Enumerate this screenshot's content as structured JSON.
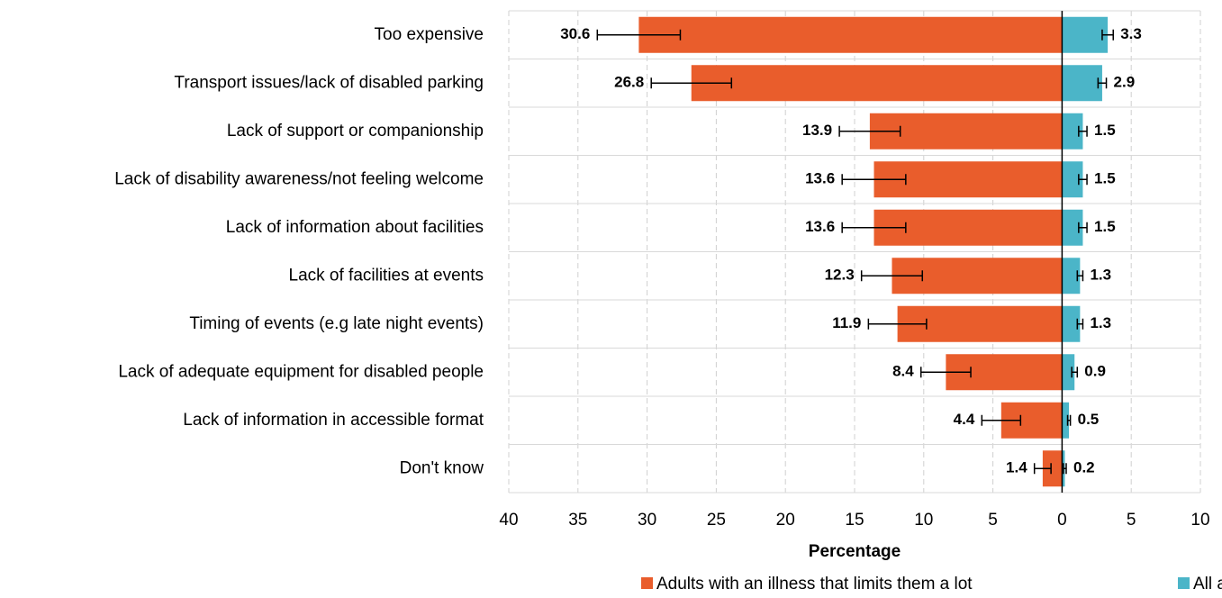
{
  "chart_data": {
    "type": "butterfly_bar",
    "categories": [
      "Too expensive",
      "Transport issues/lack of disabled parking",
      "Lack of support or companionship",
      "Lack of disability awareness/not feeling welcome",
      "Lack of information about facilities",
      "Lack of facilities at events",
      "Timing of events (e.g late night events)",
      "Lack of adequate equipment for disabled people",
      "Lack of information in accessible format",
      "Don't know"
    ],
    "series": [
      {
        "name": "Adults with an illness that limits them a lot",
        "color": "#e95d2c",
        "values": [
          -30.6,
          -26.8,
          -13.9,
          -13.6,
          -13.6,
          -12.3,
          -11.9,
          -8.4,
          -4.4,
          -1.4
        ],
        "value_labels": [
          "30.6",
          "26.8",
          "13.9",
          "13.6",
          "13.6",
          "12.3",
          "11.9",
          "8.4",
          "4.4",
          "1.4"
        ],
        "errors": [
          3.0,
          2.9,
          2.2,
          2.3,
          2.3,
          2.2,
          2.1,
          1.8,
          1.4,
          0.6
        ]
      },
      {
        "name": "All adults",
        "color": "#4bb5c8",
        "values": [
          3.3,
          2.9,
          1.5,
          1.5,
          1.5,
          1.3,
          1.3,
          0.9,
          0.5,
          0.2
        ],
        "errors": [
          0.4,
          0.3,
          0.3,
          0.3,
          0.3,
          0.2,
          0.2,
          0.2,
          0.1,
          0.1
        ]
      }
    ],
    "xlabel": "Percentage",
    "xlim": [
      -40,
      10
    ],
    "xticks": [
      {
        "value": -40,
        "label": "40"
      },
      {
        "value": -35,
        "label": "35"
      },
      {
        "value": -30,
        "label": "30"
      },
      {
        "value": -25,
        "label": "25"
      },
      {
        "value": -20,
        "label": "20"
      },
      {
        "value": -15,
        "label": "15"
      },
      {
        "value": -10,
        "label": "10"
      },
      {
        "value": -5,
        "label": "5"
      },
      0,
      5,
      10
    ],
    "grid": true,
    "legend": "bottom"
  }
}
